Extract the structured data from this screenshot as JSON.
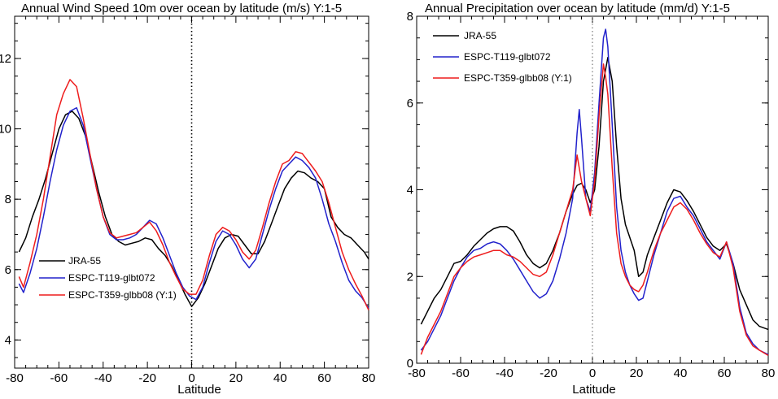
{
  "chart_data": [
    {
      "type": "line",
      "title": "Annual Wind Speed 10m over ocean by latitude (m/s)  Y:1-5",
      "xlabel": "Latitude",
      "ylabel": "",
      "xlim": [
        -80,
        80
      ],
      "ylim": [
        3.2,
        13.2
      ],
      "xticks": [
        -80,
        -60,
        -40,
        -20,
        0,
        20,
        40,
        60,
        80
      ],
      "yticks": [
        4,
        6,
        8,
        10,
        12
      ],
      "reference_line_x": 0,
      "legend_position": "lower-left",
      "series": [
        {
          "name": "JRA-55",
          "color": "#000000",
          "x": [
            -78,
            -75,
            -72,
            -69,
            -66,
            -63,
            -60,
            -57,
            -54,
            -51,
            -48,
            -45,
            -42,
            -39,
            -36,
            -33,
            -30,
            -27,
            -24,
            -21,
            -18,
            -15,
            -12,
            -9,
            -6,
            -3,
            0,
            3,
            6,
            9,
            12,
            15,
            18,
            21,
            24,
            27,
            30,
            33,
            36,
            39,
            42,
            45,
            48,
            51,
            54,
            57,
            60,
            63,
            66,
            69,
            72,
            75,
            78,
            80
          ],
          "y": [
            6.5,
            6.9,
            7.5,
            8.0,
            8.6,
            9.3,
            10.0,
            10.4,
            10.5,
            10.3,
            9.8,
            9.0,
            8.2,
            7.5,
            7.0,
            6.8,
            6.7,
            6.75,
            6.8,
            6.9,
            6.85,
            6.6,
            6.4,
            6.1,
            5.7,
            5.3,
            4.95,
            5.2,
            5.6,
            6.1,
            6.6,
            6.9,
            7.0,
            6.95,
            6.7,
            6.45,
            6.45,
            6.8,
            7.3,
            7.8,
            8.3,
            8.6,
            8.8,
            8.75,
            8.6,
            8.5,
            8.3,
            7.5,
            7.2,
            7.0,
            6.9,
            6.7,
            6.5,
            6.3
          ]
        },
        {
          "name": "ESPC-T119-glbt072",
          "color": "#2222cc",
          "x": [
            -78,
            -76,
            -73,
            -70,
            -67,
            -64,
            -61,
            -58,
            -55,
            -52,
            -49,
            -46,
            -43,
            -40,
            -37,
            -34,
            -31,
            -28,
            -25,
            -22,
            -19,
            -16,
            -13,
            -10,
            -7,
            -4,
            -1,
            2,
            5,
            8,
            11,
            14,
            17,
            20,
            23,
            26,
            29,
            32,
            35,
            38,
            41,
            44,
            47,
            50,
            53,
            56,
            59,
            62,
            65,
            68,
            71,
            74,
            77,
            80
          ],
          "y": [
            5.6,
            5.35,
            5.9,
            6.6,
            7.5,
            8.5,
            9.4,
            10.1,
            10.5,
            10.6,
            10.1,
            9.2,
            8.3,
            7.5,
            7.0,
            6.85,
            6.85,
            6.9,
            7.0,
            7.2,
            7.4,
            7.3,
            6.9,
            6.4,
            5.9,
            5.5,
            5.25,
            5.15,
            5.5,
            6.2,
            6.8,
            7.1,
            7.0,
            6.7,
            6.3,
            6.05,
            6.3,
            7.0,
            7.7,
            8.3,
            8.8,
            9.0,
            9.2,
            9.1,
            8.9,
            8.6,
            8.0,
            7.3,
            6.8,
            6.2,
            5.7,
            5.4,
            5.2,
            4.9
          ]
        },
        {
          "name": "ESPC-T359-glbb08 (Y:1)",
          "color": "#ee1c1c",
          "x": [
            -78,
            -76,
            -73,
            -70,
            -67,
            -64,
            -61,
            -58,
            -55,
            -52,
            -49,
            -46,
            -43,
            -40,
            -37,
            -34,
            -31,
            -28,
            -25,
            -22,
            -19,
            -16,
            -13,
            -10,
            -7,
            -4,
            -1,
            2,
            5,
            8,
            11,
            14,
            17,
            20,
            23,
            26,
            29,
            32,
            35,
            38,
            41,
            44,
            47,
            50,
            53,
            56,
            59,
            62,
            65,
            68,
            71,
            74,
            77,
            80
          ],
          "y": [
            5.8,
            5.5,
            6.2,
            7.0,
            8.0,
            9.2,
            10.4,
            11.0,
            11.4,
            11.2,
            10.3,
            9.3,
            8.3,
            7.5,
            7.05,
            6.9,
            6.95,
            7.0,
            7.05,
            7.2,
            7.35,
            7.1,
            6.7,
            6.2,
            5.8,
            5.45,
            5.3,
            5.3,
            5.7,
            6.4,
            7.0,
            7.2,
            7.1,
            6.85,
            6.5,
            6.3,
            6.55,
            7.2,
            7.9,
            8.5,
            9.0,
            9.1,
            9.35,
            9.3,
            9.05,
            8.8,
            8.5,
            7.9,
            7.2,
            6.5,
            6.0,
            5.6,
            5.25,
            4.85
          ]
        }
      ]
    },
    {
      "type": "line",
      "title": "Annual Precipitation over ocean by latitude (mm/d)  Y:1-5",
      "xlabel": "Latitude",
      "ylabel": "",
      "xlim": [
        -80,
        80
      ],
      "ylim": [
        0,
        8
      ],
      "xticks": [
        -80,
        -60,
        -40,
        -20,
        0,
        20,
        40,
        60,
        80
      ],
      "yticks": [
        0,
        2,
        4,
        6,
        8
      ],
      "reference_line_x": 0,
      "legend_position": "top-left",
      "series": [
        {
          "name": "JRA-55",
          "color": "#000000",
          "x": [
            -78,
            -75,
            -72,
            -69,
            -66,
            -63,
            -60,
            -57,
            -54,
            -51,
            -48,
            -45,
            -42,
            -39,
            -36,
            -33,
            -30,
            -27,
            -24,
            -21,
            -18,
            -15,
            -12,
            -9,
            -7,
            -5,
            -3,
            -1,
            1,
            3,
            5,
            7,
            9,
            11,
            13,
            15,
            17,
            19,
            21,
            23,
            25,
            28,
            31,
            34,
            37,
            40,
            43,
            46,
            49,
            52,
            55,
            58,
            61,
            64,
            67,
            70,
            73,
            76,
            80
          ],
          "y": [
            0.9,
            1.2,
            1.5,
            1.7,
            2.0,
            2.3,
            2.35,
            2.5,
            2.7,
            2.85,
            3.0,
            3.1,
            3.15,
            3.15,
            3.05,
            2.8,
            2.5,
            2.3,
            2.2,
            2.3,
            2.6,
            3.0,
            3.5,
            3.9,
            4.1,
            4.15,
            4.0,
            3.7,
            4.0,
            5.0,
            6.5,
            7.05,
            6.5,
            5.0,
            3.8,
            3.2,
            2.9,
            2.6,
            2.0,
            2.1,
            2.5,
            2.9,
            3.3,
            3.7,
            4.0,
            3.95,
            3.75,
            3.5,
            3.2,
            2.9,
            2.7,
            2.6,
            2.75,
            2.3,
            1.7,
            1.35,
            1.0,
            0.85,
            0.78
          ]
        },
        {
          "name": "ESPC-T119-glbt072",
          "color": "#2222cc",
          "x": [
            -78,
            -75,
            -72,
            -69,
            -66,
            -63,
            -60,
            -57,
            -54,
            -51,
            -48,
            -45,
            -42,
            -39,
            -36,
            -33,
            -30,
            -27,
            -24,
            -21,
            -18,
            -15,
            -12,
            -9,
            -7,
            -6,
            -5,
            -3,
            -1,
            1,
            3,
            5,
            6,
            7,
            9,
            11,
            13,
            15,
            17,
            19,
            21,
            23,
            25,
            28,
            31,
            34,
            37,
            40,
            43,
            46,
            49,
            52,
            55,
            58,
            61,
            64,
            67,
            70,
            73,
            76,
            80
          ],
          "y": [
            0.3,
            0.5,
            0.8,
            1.1,
            1.5,
            1.9,
            2.2,
            2.45,
            2.6,
            2.65,
            2.75,
            2.8,
            2.75,
            2.6,
            2.4,
            2.15,
            1.9,
            1.65,
            1.5,
            1.6,
            1.9,
            2.4,
            3.0,
            3.8,
            5.3,
            5.85,
            5.2,
            3.8,
            3.5,
            4.4,
            6.0,
            7.5,
            7.7,
            7.3,
            5.5,
            3.6,
            2.6,
            2.1,
            1.8,
            1.6,
            1.45,
            1.5,
            1.9,
            2.5,
            3.0,
            3.5,
            3.8,
            3.85,
            3.6,
            3.4,
            3.1,
            2.8,
            2.6,
            2.4,
            2.8,
            2.3,
            1.3,
            0.7,
            0.45,
            0.3,
            0.2
          ]
        },
        {
          "name": "ESPC-T359-glbb08 (Y:1)",
          "color": "#ee1c1c",
          "x": [
            -78,
            -75,
            -72,
            -69,
            -66,
            -63,
            -60,
            -57,
            -54,
            -51,
            -48,
            -45,
            -42,
            -39,
            -36,
            -33,
            -30,
            -27,
            -24,
            -21,
            -18,
            -15,
            -12,
            -9,
            -7,
            -5,
            -3,
            -1,
            1,
            3,
            5,
            6,
            7,
            9,
            11,
            13,
            15,
            17,
            19,
            21,
            23,
            25,
            28,
            31,
            34,
            37,
            40,
            43,
            46,
            49,
            52,
            55,
            58,
            61,
            64,
            67,
            70,
            73,
            76,
            80
          ],
          "y": [
            0.2,
            0.6,
            0.9,
            1.2,
            1.6,
            2.0,
            2.2,
            2.35,
            2.45,
            2.5,
            2.55,
            2.6,
            2.6,
            2.5,
            2.45,
            2.35,
            2.2,
            2.05,
            2.0,
            2.1,
            2.5,
            3.0,
            3.5,
            4.0,
            4.8,
            4.2,
            3.8,
            3.4,
            4.2,
            5.7,
            6.9,
            6.6,
            6.2,
            4.5,
            3.0,
            2.3,
            2.0,
            1.8,
            1.7,
            1.65,
            1.8,
            2.1,
            2.6,
            3.0,
            3.3,
            3.6,
            3.7,
            3.55,
            3.3,
            3.0,
            2.75,
            2.55,
            2.45,
            2.8,
            2.2,
            1.2,
            0.65,
            0.4,
            0.3,
            0.18
          ]
        }
      ]
    }
  ]
}
